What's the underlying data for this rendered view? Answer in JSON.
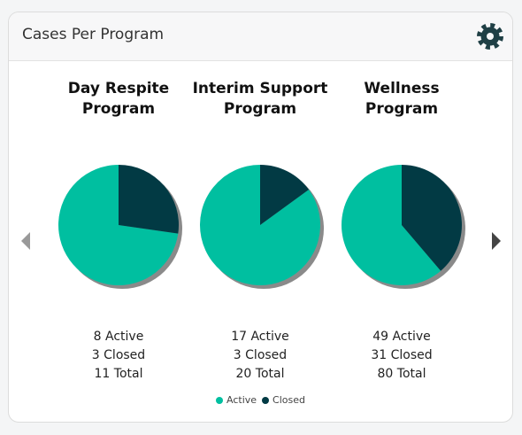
{
  "header": {
    "title": "Cases Per Program"
  },
  "chart_data": [
    {
      "type": "pie",
      "title": "Day Respite Program",
      "categories": [
        "Active",
        "Closed"
      ],
      "values": [
        8,
        3
      ],
      "value_labels": [
        "8 Active",
        "3 Closed"
      ],
      "total": "11 Total",
      "colors": [
        "#00bfa0",
        "#023a44"
      ]
    },
    {
      "type": "pie",
      "title": "Interim Support Program",
      "categories": [
        "Active",
        "Closed"
      ],
      "values": [
        17,
        3
      ],
      "value_labels": [
        "17 Active",
        "3 Closed"
      ],
      "total": "20 Total",
      "colors": [
        "#00bfa0",
        "#023a44"
      ]
    },
    {
      "type": "pie",
      "title": "Wellness Program",
      "categories": [
        "Active",
        "Closed"
      ],
      "values": [
        49,
        31
      ],
      "value_labels": [
        "49 Active",
        "31 Closed"
      ],
      "total": "80 Total",
      "colors": [
        "#00bfa0",
        "#023a44"
      ]
    }
  ]
}
